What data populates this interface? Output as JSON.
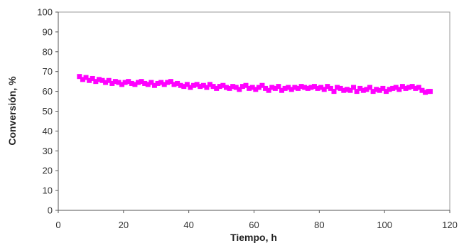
{
  "chart_data": {
    "type": "scatter",
    "title": "",
    "xlabel": "Tiempo, h",
    "ylabel": "Conversión, %",
    "xlim": [
      0,
      120
    ],
    "ylim": [
      0,
      100
    ],
    "xticks": [
      0,
      20,
      40,
      60,
      80,
      100,
      120
    ],
    "yticks": [
      0,
      10,
      20,
      30,
      40,
      50,
      60,
      70,
      80,
      90,
      100
    ],
    "grid": false,
    "legend": "none",
    "marker": "square",
    "color": "#ff00ff",
    "series": [
      {
        "x": [
          6.5,
          7.5,
          8.5,
          9.5,
          10.5,
          11.5,
          12.5,
          13.5,
          14.5,
          15.5,
          16.5,
          17.5,
          18.5,
          19.5,
          20.5,
          21.5,
          22.5,
          23.5,
          24.5,
          25.5,
          26.5,
          27.5,
          28.5,
          29.5,
          30.5,
          31.5,
          32.5,
          33.5,
          34.5,
          35.5,
          36.5,
          37.5,
          38.5,
          39.5,
          40.5,
          41.5,
          42.5,
          43.5,
          44.5,
          45.5,
          46.5,
          47.5,
          48.5,
          49.5,
          50.5,
          51.5,
          52.5,
          53.5,
          54.5,
          55.5,
          56.5,
          57.5,
          58.5,
          59.5,
          60.5,
          61.5,
          62.5,
          63.5,
          64.5,
          65.5,
          66.5,
          67.5,
          68.5,
          69.5,
          70.5,
          71.5,
          72.5,
          73.5,
          74.5,
          75.5,
          76.5,
          77.5,
          78.5,
          79.5,
          80.5,
          81.5,
          82.5,
          83.5,
          84.5,
          85.5,
          86.5,
          87.5,
          88.5,
          89.5,
          90.5,
          91.5,
          92.5,
          93.5,
          94.5,
          95.5,
          96.5,
          97.5,
          98.5,
          99.5,
          100.5,
          101.5,
          102.5,
          103.5,
          104.5,
          105.5,
          106.5,
          107.5,
          108.5,
          109.5,
          110.5,
          111.5,
          112.5,
          113.5,
          114.0
        ],
        "y": [
          67.5,
          66.0,
          67.0,
          65.5,
          66.5,
          65.0,
          66.0,
          65.5,
          64.5,
          65.5,
          64.0,
          65.0,
          64.5,
          63.5,
          64.5,
          65.0,
          64.0,
          63.5,
          64.5,
          65.0,
          64.0,
          63.5,
          64.5,
          63.0,
          64.0,
          64.5,
          63.5,
          64.5,
          65.0,
          63.5,
          64.0,
          63.0,
          62.5,
          63.5,
          62.0,
          63.0,
          63.5,
          62.5,
          63.0,
          62.0,
          63.5,
          62.5,
          61.5,
          62.5,
          63.0,
          62.0,
          61.5,
          62.5,
          62.0,
          61.0,
          62.5,
          63.0,
          61.5,
          62.0,
          61.0,
          62.0,
          63.0,
          61.5,
          60.5,
          62.0,
          61.5,
          62.5,
          60.5,
          61.5,
          62.0,
          61.0,
          62.0,
          61.5,
          62.5,
          62.0,
          61.5,
          62.0,
          62.5,
          61.5,
          62.0,
          61.0,
          62.5,
          61.5,
          60.0,
          62.0,
          61.5,
          60.5,
          61.0,
          60.5,
          62.0,
          60.0,
          61.5,
          60.5,
          61.0,
          62.0,
          60.0,
          61.0,
          60.5,
          61.5,
          60.0,
          61.0,
          61.5,
          62.0,
          61.0,
          62.5,
          61.5,
          62.0,
          62.5,
          61.5,
          62.0,
          60.5,
          59.5,
          60.0,
          60.0
        ]
      }
    ]
  }
}
